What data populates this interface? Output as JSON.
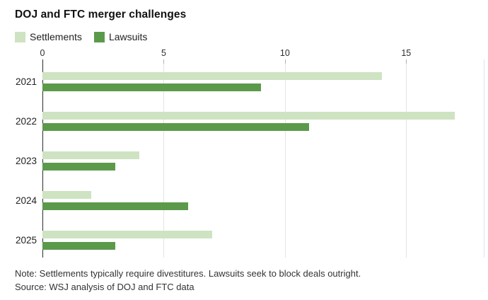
{
  "title": "DOJ and FTC merger challenges",
  "legend": [
    {
      "label": "Settlements",
      "color": "#cee3c2"
    },
    {
      "label": "Lawsuits",
      "color": "#5b9a4a"
    }
  ],
  "notes": {
    "note": "Note: Settlements typically require divestitures. Lawsuits seek to block deals outright.",
    "source": "Source: WSJ analysis of DOJ and FTC data"
  },
  "chart_data": {
    "type": "bar",
    "orientation": "horizontal",
    "title": "DOJ and FTC merger challenges",
    "categories": [
      "2021",
      "2022",
      "2023",
      "2024",
      "2025"
    ],
    "series": [
      {
        "name": "Settlements",
        "color": "#cee3c2",
        "values": [
          14,
          17,
          4,
          2,
          7
        ]
      },
      {
        "name": "Lawsuits",
        "color": "#5b9a4a",
        "values": [
          9,
          11,
          3,
          6,
          3
        ]
      }
    ],
    "xticks": [
      0,
      5,
      10,
      15
    ],
    "xlim": [
      0,
      18.2
    ],
    "grid": true,
    "grid_color": "#e4e4e4",
    "axis_line_color": "#2c2c2c",
    "legend_position": "top-left",
    "right_edge_gridline": true
  }
}
